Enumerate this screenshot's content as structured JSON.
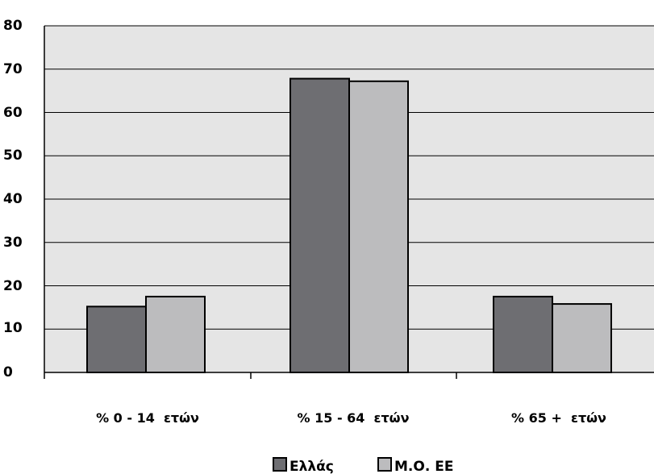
{
  "chart_data": {
    "type": "bar",
    "categories": [
      "% 0 - 14  ετών",
      "% 15 - 64  ετών",
      "% 65 +  ετών"
    ],
    "series": [
      {
        "name": "Ελλάς",
        "values": [
          15.2,
          67.8,
          17.5
        ],
        "color": "#6e6e72"
      },
      {
        "name": "Μ.Ο. ΕΕ",
        "values": [
          17.5,
          67.2,
          15.8
        ],
        "color": "#bcbcbe"
      }
    ],
    "yticks": [
      "0",
      "10",
      "20",
      "30",
      "40",
      "50",
      "60",
      "70",
      "80"
    ],
    "ylim": [
      0,
      80
    ],
    "grid": true,
    "legend_position": "bottom-center",
    "plot_background": "#e5e5e5"
  }
}
